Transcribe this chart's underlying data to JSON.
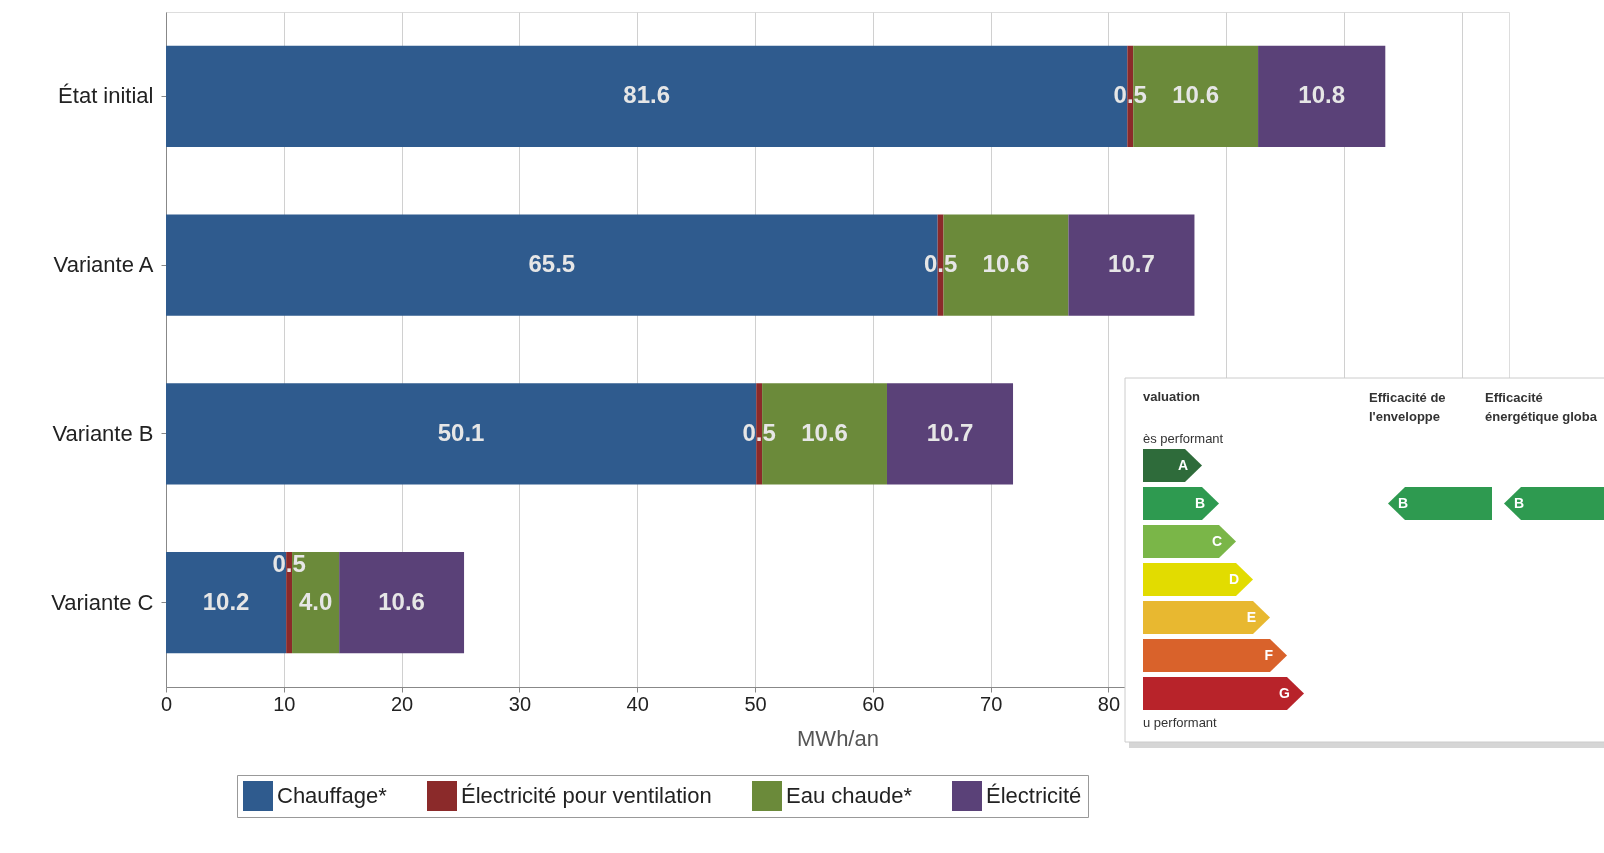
{
  "chart_data": [
    {
      "type": "bar",
      "orientation": "horizontal",
      "stacked": true,
      "grid": "x",
      "legend": "bottom",
      "xlabel": "MWh/an",
      "categories": [
        "État initial",
        "Variante A",
        "Variante B",
        "Variante C"
      ],
      "series": [
        {
          "name": "Chauffage*",
          "color": "#2f5b8e",
          "values": [
            81.6,
            65.5,
            50.1,
            10.2
          ],
          "value_labels": [
            "81.6",
            "65.5",
            "50.1",
            "10.2"
          ]
        },
        {
          "name": "Électricité pour ventilation",
          "color": "#8b2a2a",
          "values": [
            0.5,
            0.5,
            0.5,
            0.5
          ],
          "value_labels": [
            "0.5",
            "0.5",
            "0.5",
            "0.5"
          ]
        },
        {
          "name": "Eau chaude*",
          "color": "#6b8a3a",
          "values": [
            10.6,
            10.6,
            10.6,
            4.0
          ],
          "value_labels": [
            "10.6",
            "10.6",
            "10.6",
            "4.0"
          ]
        },
        {
          "name": "Électricité",
          "color": "#5a4178",
          "values": [
            10.8,
            10.7,
            10.7,
            10.6
          ],
          "value_labels": [
            "10.8",
            "10.7",
            "10.7",
            "10.6"
          ]
        }
      ],
      "xlim": [
        0,
        114
      ],
      "xticks": [
        0,
        10,
        20,
        30,
        40,
        50,
        60,
        70,
        80,
        {
          "value": 90,
          "label": null
        },
        {
          "value": 100,
          "label": null
        },
        {
          "value": 110,
          "label": null
        }
      ]
    },
    {
      "type": "other",
      "categories": [
        "A",
        "B",
        "C",
        "D",
        "E",
        "F",
        "G"
      ],
      "colors": [
        "#2e6b3a",
        "#2e9a50",
        "#7ab648",
        "#e2dc00",
        "#e8b830",
        "#d9622b",
        "#b8232a"
      ],
      "annotations": [
        "valuation",
        "ès performant",
        "u performant",
        "Efficacité de\nl'enveloppe",
        "Efficacité\nénergétique globa",
        "B",
        "B"
      ]
    }
  ]
}
